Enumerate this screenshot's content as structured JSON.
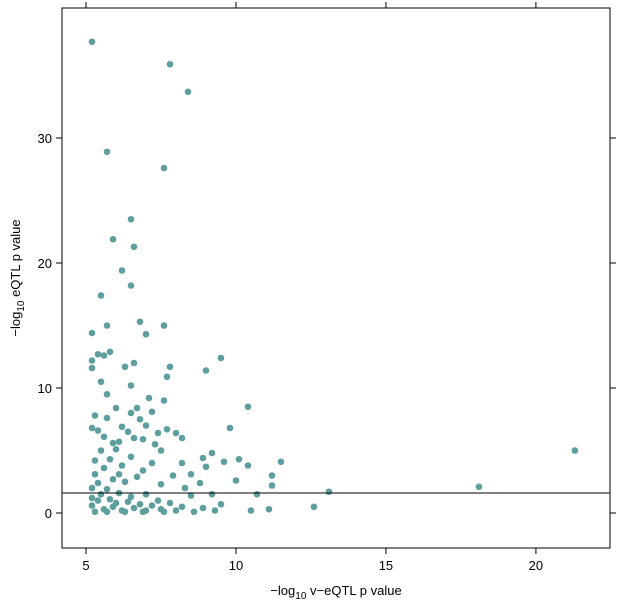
{
  "chart_data": {
    "type": "scatter",
    "xlabel": [
      "−log",
      "10",
      " v−eQTL p value"
    ],
    "ylabel": [
      "−log",
      "10",
      " eQTL p value"
    ],
    "xlim": [
      4.2,
      22.47
    ],
    "ylim": [
      -2.8,
      40.4
    ],
    "xticks": [
      5,
      10,
      15,
      20
    ],
    "yticks": [
      0,
      10,
      20,
      30
    ],
    "hline": 1.6,
    "color": "#5e9e9e",
    "x": [
      5.2,
      7.8,
      8.4,
      5.7,
      7.6,
      6.5,
      6.6,
      5.9,
      6.2,
      6.5,
      5.5,
      5.2,
      6.8,
      5.7,
      7.6,
      7.0,
      5.4,
      5.6,
      5.8,
      5.2,
      9.5,
      6.3,
      6.6,
      7.8,
      5.2,
      9.0,
      5.5,
      7.7,
      6.5,
      5.7,
      7.1,
      7.6,
      10.4,
      5.3,
      6.0,
      6.7,
      6.5,
      7.2,
      5.7,
      6.8,
      7.0,
      9.8,
      5.2,
      5.4,
      6.2,
      7.4,
      7.7,
      8.0,
      5.6,
      6.1,
      6.6,
      7.3,
      9.2,
      8.9,
      10.1,
      11.5,
      21.3,
      10.4,
      9.6,
      8.2,
      9.0,
      11.2,
      10.0,
      11.2,
      10.7,
      18.1,
      13.1,
      12.6,
      11.1,
      10.5,
      9.5,
      8.9,
      8.5,
      9.2,
      8.3,
      7.9,
      8.5,
      8.8,
      7.5,
      6.9,
      7.2,
      6.5,
      6.0,
      5.5,
      5.8,
      5.3,
      5.6,
      6.2,
      6.7,
      6.3,
      5.9,
      5.4,
      5.2,
      5.7,
      6.1,
      6.5,
      7.0,
      7.4,
      7.8,
      8.2,
      8.0,
      7.5,
      7.0,
      6.6,
      6.2,
      5.9,
      5.6,
      5.3,
      5.2,
      5.4,
      5.8,
      6.0,
      6.4,
      6.8,
      7.2,
      5.3,
      5.5,
      5.2,
      5.7,
      6.3,
      6.9,
      7.6,
      8.6,
      9.3,
      6.1,
      5.9,
      6.4,
      6.9,
      7.5,
      8.2
    ],
    "values": [
      37.7,
      35.9,
      33.7,
      28.9,
      27.6,
      23.5,
      21.3,
      21.9,
      19.4,
      18.2,
      17.4,
      14.4,
      15.3,
      15.0,
      15.0,
      14.3,
      12.7,
      12.6,
      12.9,
      12.2,
      12.4,
      11.7,
      12.0,
      11.7,
      11.6,
      11.4,
      10.5,
      10.9,
      10.2,
      9.5,
      9.2,
      9.0,
      8.5,
      7.8,
      8.4,
      8.4,
      8.0,
      8.1,
      7.6,
      7.5,
      7.0,
      6.8,
      6.8,
      6.6,
      6.9,
      6.4,
      6.7,
      6.4,
      6.1,
      5.7,
      6.0,
      5.5,
      4.8,
      4.4,
      4.3,
      4.1,
      5.0,
      3.8,
      4.1,
      4.0,
      3.7,
      3.0,
      2.6,
      2.2,
      1.5,
      2.1,
      1.7,
      0.5,
      0.3,
      0.2,
      0.7,
      0.4,
      1.4,
      1.5,
      2.0,
      3.0,
      3.1,
      2.4,
      2.3,
      3.4,
      4.0,
      4.5,
      5.1,
      5.0,
      4.3,
      4.2,
      3.6,
      3.8,
      2.9,
      2.5,
      2.7,
      2.4,
      2.0,
      1.9,
      1.6,
      1.3,
      1.5,
      1.0,
      0.8,
      0.5,
      0.2,
      0.3,
      0.2,
      0.4,
      0.2,
      0.5,
      0.3,
      0.1,
      0.6,
      1.0,
      1.1,
      0.8,
      0.9,
      0.7,
      0.6,
      3.1,
      1.5,
      1.2,
      0.1,
      0.1,
      0.1,
      0.1,
      0.1,
      0.2,
      3.1,
      5.6,
      6.5,
      5.9,
      5.0,
      6.0
    ]
  }
}
